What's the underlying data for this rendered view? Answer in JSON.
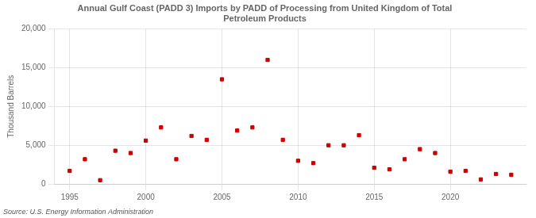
{
  "chart_data": {
    "type": "scatter",
    "title": "Annual Gulf Coast (PADD 3) Imports by PADD of Processing from United Kingdom of Total\nPetroleum Products",
    "y_label": "Thousand Barrels",
    "annotations": [
      "Source: U.S. Energy Information Administration"
    ],
    "x": [
      1995,
      1996,
      1997,
      1998,
      1999,
      2000,
      2001,
      2002,
      2003,
      2004,
      2005,
      2006,
      2007,
      2008,
      2009,
      2010,
      2011,
      2012,
      2013,
      2014,
      2015,
      2016,
      2017,
      2018,
      2019,
      2020,
      2021,
      2022,
      2023,
      2024
    ],
    "values": [
      1700,
      3200,
      500,
      4300,
      4000,
      5600,
      7300,
      3200,
      6200,
      5700,
      13500,
      6900,
      7300,
      16000,
      5700,
      3000,
      2700,
      5000,
      5000,
      6300,
      2100,
      1900,
      3200,
      4500,
      4000,
      1600,
      1700,
      600,
      1300,
      1200
    ],
    "color": "#cc0000",
    "marker": "square",
    "xlim": [
      1994,
      2025
    ],
    "xticks": [
      1995,
      2000,
      2005,
      2010,
      2015,
      2020
    ],
    "ylim": [
      0,
      20000
    ],
    "yticks": [
      0,
      {
        "value": 5000,
        "label": "5,000"
      },
      {
        "value": 10000,
        "label": "10,000"
      },
      {
        "value": 15000,
        "label": "15,000"
      },
      {
        "value": 20000,
        "label": "20,000"
      }
    ],
    "grid": true
  }
}
